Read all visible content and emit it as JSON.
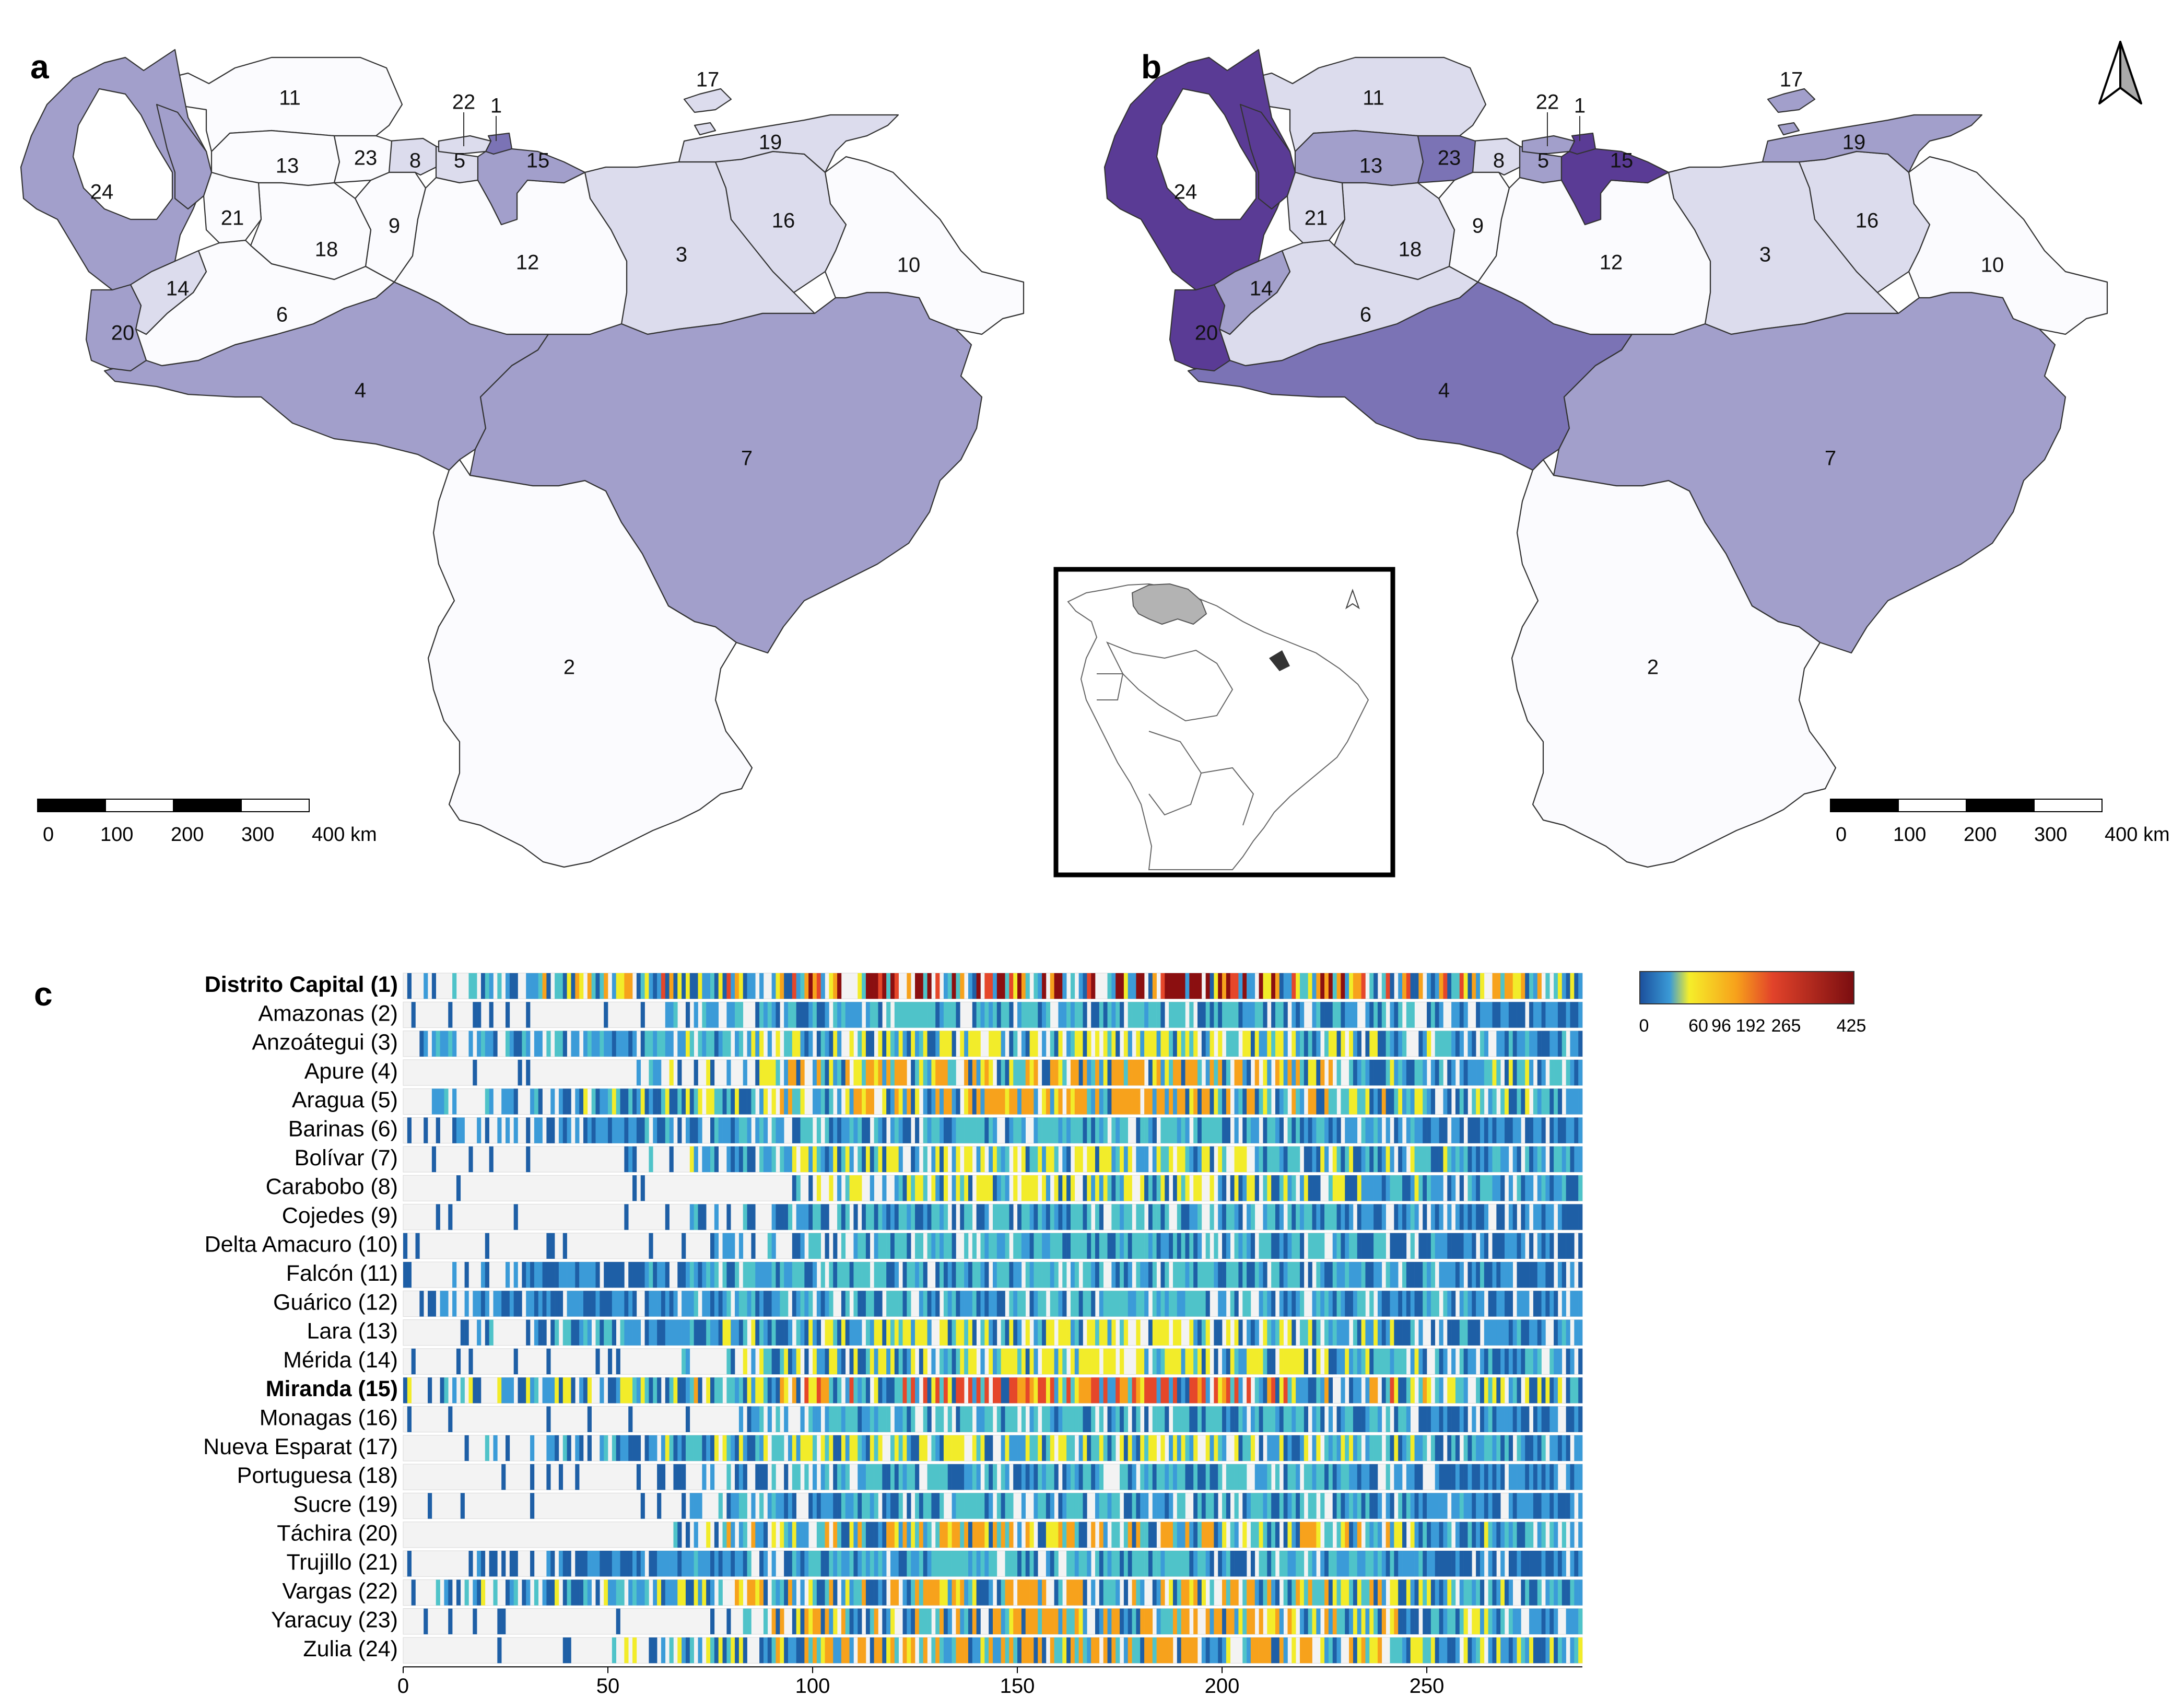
{
  "panels": {
    "a": {
      "letter": "a",
      "regions": [
        {
          "id": "1",
          "label": "1",
          "level": 3
        },
        {
          "id": "2",
          "label": "2",
          "level": 0
        },
        {
          "id": "3",
          "label": "3",
          "level": 1
        },
        {
          "id": "4",
          "label": "4",
          "level": 2
        },
        {
          "id": "5",
          "label": "5",
          "level": 1
        },
        {
          "id": "6",
          "label": "6",
          "level": 0
        },
        {
          "id": "7",
          "label": "7",
          "level": 2
        },
        {
          "id": "8",
          "label": "8",
          "level": 1
        },
        {
          "id": "9",
          "label": "9",
          "level": 0
        },
        {
          "id": "10",
          "label": "10",
          "level": 0
        },
        {
          "id": "11",
          "label": "11",
          "level": 0
        },
        {
          "id": "12",
          "label": "12",
          "level": 0
        },
        {
          "id": "13",
          "label": "13",
          "level": 0
        },
        {
          "id": "14",
          "label": "14",
          "level": 1
        },
        {
          "id": "15",
          "label": "15",
          "level": 2
        },
        {
          "id": "16",
          "label": "16",
          "level": 1
        },
        {
          "id": "17",
          "label": "17",
          "level": 1
        },
        {
          "id": "18",
          "label": "18",
          "level": 0
        },
        {
          "id": "19",
          "label": "19",
          "level": 1
        },
        {
          "id": "20",
          "label": "20",
          "level": 2
        },
        {
          "id": "21",
          "label": "21",
          "level": 0
        },
        {
          "id": "22",
          "label": "22",
          "level": 1
        },
        {
          "id": "23",
          "label": "23",
          "level": 0
        },
        {
          "id": "24",
          "label": "24",
          "level": 2
        },
        {
          "id": "falcon-west",
          "label": "",
          "level": 2
        }
      ],
      "scale": {
        "ticks": [
          "0",
          "100",
          "200",
          "300",
          "400 km"
        ]
      }
    },
    "b": {
      "letter": "b",
      "regions": [
        {
          "id": "1",
          "label": "1",
          "level": 4
        },
        {
          "id": "2",
          "label": "2",
          "level": 0
        },
        {
          "id": "3",
          "label": "3",
          "level": 1
        },
        {
          "id": "4",
          "label": "4",
          "level": 3
        },
        {
          "id": "5",
          "label": "5",
          "level": 2
        },
        {
          "id": "6",
          "label": "6",
          "level": 1
        },
        {
          "id": "7",
          "label": "7",
          "level": 2
        },
        {
          "id": "8",
          "label": "8",
          "level": 1
        },
        {
          "id": "9",
          "label": "9",
          "level": 0
        },
        {
          "id": "10",
          "label": "10",
          "level": 0
        },
        {
          "id": "11",
          "label": "11",
          "level": 1
        },
        {
          "id": "12",
          "label": "12",
          "level": 0
        },
        {
          "id": "13",
          "label": "13",
          "level": 2
        },
        {
          "id": "14",
          "label": "14",
          "level": 2
        },
        {
          "id": "15",
          "label": "15",
          "level": 4
        },
        {
          "id": "16",
          "label": "16",
          "level": 1
        },
        {
          "id": "17",
          "label": "17",
          "level": 2
        },
        {
          "id": "18",
          "label": "18",
          "level": 1
        },
        {
          "id": "19",
          "label": "19",
          "level": 2
        },
        {
          "id": "20",
          "label": "20",
          "level": 4
        },
        {
          "id": "21",
          "label": "21",
          "level": 1
        },
        {
          "id": "22",
          "label": "22",
          "level": 2
        },
        {
          "id": "23",
          "label": "23",
          "level": 3
        },
        {
          "id": "24",
          "label": "24",
          "level": 4
        },
        {
          "id": "falcon-west",
          "label": "",
          "level": 4
        }
      ],
      "scale": {
        "ticks": [
          "0",
          "100",
          "200",
          "300",
          "400 km"
        ]
      }
    }
  },
  "choropleth_colors": [
    "#fbfbfe",
    "#dcdced",
    "#a29fcb",
    "#7b73b5",
    "#5a3b95"
  ],
  "inset": {
    "highlight_color": "#b3b3b3",
    "north_arrow": "north-arrow"
  },
  "heatmap": {
    "letter": "c",
    "states": [
      {
        "name": "Distrito Capital (1)",
        "bold": true
      },
      {
        "name": "Amazonas (2)",
        "bold": false
      },
      {
        "name": "Anzoátegui (3)",
        "bold": false
      },
      {
        "name": "Apure (4)",
        "bold": false
      },
      {
        "name": "Aragua (5)",
        "bold": false
      },
      {
        "name": "Barinas (6)",
        "bold": false
      },
      {
        "name": "Bolívar (7)",
        "bold": false
      },
      {
        "name": "Carabobo (8)",
        "bold": false
      },
      {
        "name": "Cojedes (9)",
        "bold": false
      },
      {
        "name": "Delta Amacuro (10)",
        "bold": false
      },
      {
        "name": "Falcón (11)",
        "bold": false
      },
      {
        "name": "Guárico (12)",
        "bold": false
      },
      {
        "name": "Lara (13)",
        "bold": false
      },
      {
        "name": "Mérida (14)",
        "bold": false
      },
      {
        "name": "Miranda (15)",
        "bold": true
      },
      {
        "name": "Monagas (16)",
        "bold": false
      },
      {
        "name": "Nueva Esparat (17)",
        "bold": false
      },
      {
        "name": "Portuguesa (18)",
        "bold": false
      },
      {
        "name": "Sucre (19)",
        "bold": false
      },
      {
        "name": "Táchira (20)",
        "bold": false
      },
      {
        "name": "Trujillo (21)",
        "bold": false
      },
      {
        "name": "Vargas (22)",
        "bold": false
      },
      {
        "name": "Yaracuy (23)",
        "bold": false
      },
      {
        "name": "Zulia (24)",
        "bold": false
      }
    ],
    "x_ticks": [
      "0",
      "50",
      "100",
      "150",
      "200",
      "250"
    ],
    "x_range": [
      0,
      288
    ],
    "days": 288,
    "colorbar": {
      "ticks": [
        "0",
        "60",
        "96",
        "192",
        "265",
        "425"
      ],
      "stops": [
        "#1e5fa6",
        "#3b9bd8",
        "#4fc3c9",
        "#f2ec2a",
        "#f7a21c",
        "#e5472a",
        "#8b0f10"
      ]
    }
  }
}
